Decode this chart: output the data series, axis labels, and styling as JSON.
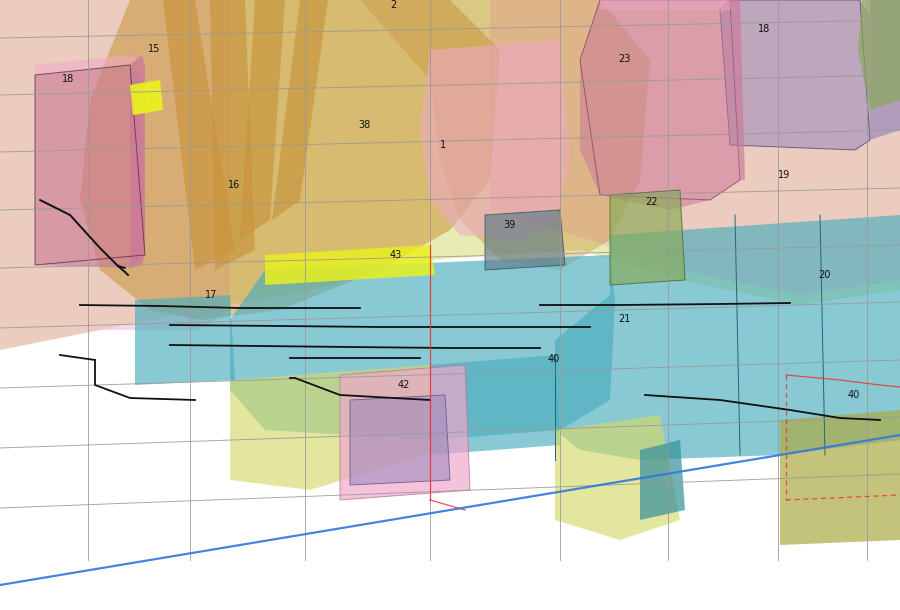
{
  "background": "#ffffff",
  "c_yg": "#d4d96a",
  "c_teal": "#4aadbe",
  "c_pink": "#f0a8cc",
  "c_obrown": "#c8943a",
  "c_purple": "#9988bb",
  "c_green": "#88aa55",
  "c_dpink": "#cc7799",
  "c_yellow": "#e8f020",
  "c_gblu": "#607a88",
  "c_olive": "#aaaa44",
  "c_dteal": "#35909a",
  "c_grid": "#999999",
  "c_lat": "#111111",
  "c_red": "#ee3333",
  "c_blue": "#3377dd"
}
